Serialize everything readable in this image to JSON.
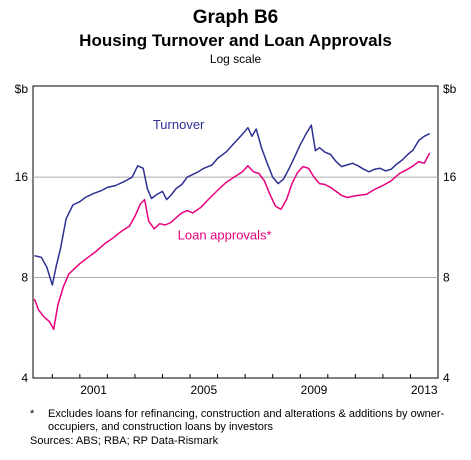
{
  "header": {
    "graph_number": "Graph B6",
    "title": "Housing Turnover and Loan Approvals",
    "subtitle": "Log scale"
  },
  "footnote": {
    "marker": "*",
    "text": "Excludes loans for refinancing, construction and alterations & additions by owner-occupiers, and construction loans by investors"
  },
  "sources": "Sources: ABS; RBA; RP Data-Rismark",
  "chart_data": {
    "type": "line",
    "log_scale": true,
    "ylim": [
      4,
      30
    ],
    "y_ticks": [
      4,
      8,
      16
    ],
    "y_unit_left": "$b",
    "y_unit_right": "$b",
    "xlim": [
      1999.3,
      2014.0
    ],
    "x_ticks": [
      2001,
      2005,
      2009,
      2013
    ],
    "grid": "horizontal",
    "colors": {
      "Turnover": "#2e3192",
      "Loan approvals*": "#e6007e",
      "grid": "#aaaaaa",
      "background": "#ffffff"
    },
    "annotations": [
      {
        "text": "Turnover",
        "series": "Turnover"
      },
      {
        "text": "Loan approvals*",
        "series": "Loan approvals*"
      }
    ],
    "series": [
      {
        "name": "Turnover",
        "x": [
          1999.35,
          1999.6,
          1999.8,
          2000.0,
          2000.15,
          2000.3,
          2000.5,
          2000.75,
          2001.0,
          2001.2,
          2001.5,
          2001.8,
          2002.0,
          2002.3,
          2002.6,
          2002.9,
          2003.1,
          2003.3,
          2003.45,
          2003.6,
          2003.8,
          2004.0,
          2004.15,
          2004.3,
          2004.5,
          2004.7,
          2004.9,
          2005.1,
          2005.3,
          2005.5,
          2005.8,
          2006.0,
          2006.3,
          2006.6,
          2006.9,
          2007.1,
          2007.25,
          2007.4,
          2007.6,
          2007.8,
          2008.0,
          2008.2,
          2008.4,
          2008.6,
          2008.8,
          2009.0,
          2009.2,
          2009.4,
          2009.55,
          2009.7,
          2009.9,
          2010.1,
          2010.3,
          2010.5,
          2010.7,
          2010.9,
          2011.1,
          2011.3,
          2011.5,
          2011.7,
          2011.9,
          2012.1,
          2012.3,
          2012.5,
          2012.7,
          2012.9,
          2013.1,
          2013.3,
          2013.5,
          2013.7
        ],
        "values": [
          9.3,
          9.2,
          8.6,
          7.6,
          8.7,
          9.8,
          12.0,
          13.2,
          13.5,
          13.9,
          14.3,
          14.6,
          14.9,
          15.1,
          15.5,
          16.0,
          17.3,
          17.0,
          14.8,
          13.8,
          14.2,
          14.5,
          13.7,
          14.1,
          14.8,
          15.2,
          16.0,
          16.3,
          16.6,
          17.0,
          17.4,
          18.2,
          19.0,
          20.2,
          21.5,
          22.5,
          21.2,
          22.3,
          19.5,
          17.6,
          16.0,
          15.3,
          15.8,
          17.0,
          18.4,
          20.0,
          21.5,
          22.9,
          19.2,
          19.6,
          19.0,
          18.7,
          17.8,
          17.2,
          17.4,
          17.6,
          17.3,
          16.9,
          16.6,
          16.9,
          17.0,
          16.7,
          16.9,
          17.5,
          18.0,
          18.7,
          19.3,
          20.6,
          21.2,
          21.6
        ]
      },
      {
        "name": "Loan approvals*",
        "x": [
          1999.35,
          1999.5,
          1999.7,
          1999.9,
          2000.05,
          2000.2,
          2000.4,
          2000.6,
          2000.8,
          2001.0,
          2001.3,
          2001.6,
          2001.9,
          2002.2,
          2002.5,
          2002.8,
          2003.0,
          2003.2,
          2003.35,
          2003.5,
          2003.7,
          2003.9,
          2004.1,
          2004.3,
          2004.5,
          2004.7,
          2004.9,
          2005.1,
          2005.4,
          2005.7,
          2006.0,
          2006.3,
          2006.6,
          2006.9,
          2007.1,
          2007.3,
          2007.5,
          2007.7,
          2007.9,
          2008.1,
          2008.3,
          2008.5,
          2008.7,
          2008.9,
          2009.1,
          2009.3,
          2009.5,
          2009.7,
          2009.9,
          2010.1,
          2010.3,
          2010.5,
          2010.7,
          2010.9,
          2011.1,
          2011.4,
          2011.7,
          2012.0,
          2012.3,
          2012.6,
          2012.9,
          2013.1,
          2013.3,
          2013.5,
          2013.7
        ],
        "values": [
          6.9,
          6.4,
          6.1,
          5.9,
          5.6,
          6.6,
          7.5,
          8.2,
          8.5,
          8.8,
          9.2,
          9.6,
          10.1,
          10.5,
          11.0,
          11.4,
          12.2,
          13.3,
          13.7,
          11.8,
          11.2,
          11.6,
          11.5,
          11.7,
          12.1,
          12.5,
          12.7,
          12.5,
          13.0,
          13.8,
          14.6,
          15.4,
          16.0,
          16.6,
          17.3,
          16.6,
          16.4,
          15.6,
          14.2,
          13.1,
          12.8,
          13.7,
          15.3,
          16.5,
          17.2,
          17.0,
          16.0,
          15.3,
          15.2,
          14.9,
          14.5,
          14.1,
          13.9,
          14.0,
          14.1,
          14.2,
          14.7,
          15.1,
          15.6,
          16.4,
          16.9,
          17.3,
          17.8,
          17.6,
          18.9
        ]
      }
    ]
  }
}
